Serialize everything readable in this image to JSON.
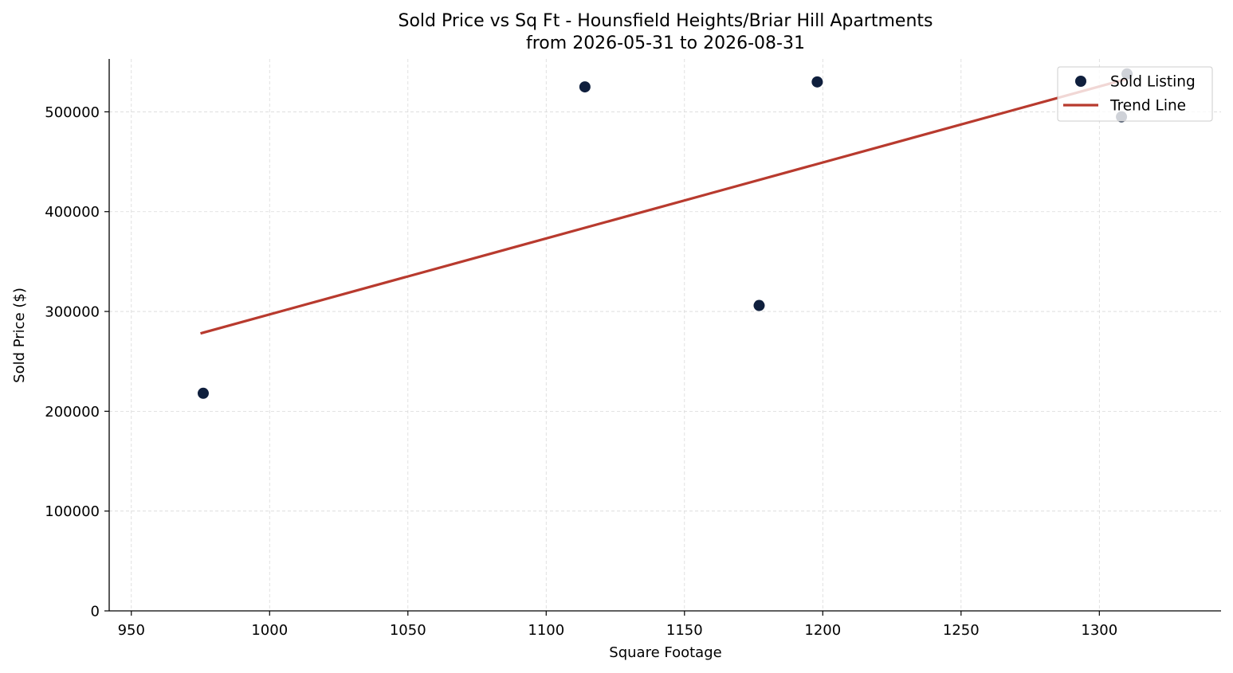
{
  "chart_data": {
    "type": "scatter",
    "title": "Sold Price vs Sq Ft - Hounsfield Heights/Briar Hill Apartments",
    "subtitle": "from 2026-05-31 to 2026-08-31",
    "xlabel": "Square Footage",
    "ylabel": "Sold Price ($)",
    "xlim": [
      942,
      1344
    ],
    "ylim": [
      0,
      553000
    ],
    "xticks": [
      950,
      1000,
      1050,
      1100,
      1150,
      1200,
      1250,
      1300
    ],
    "yticks": [
      0,
      100000,
      200000,
      300000,
      400000,
      500000
    ],
    "grid": true,
    "legend_position": "top-right",
    "series": [
      {
        "name": "Sold Listing",
        "kind": "scatter",
        "color": "#0f1f3d",
        "points": [
          {
            "x": 976,
            "y": 218000
          },
          {
            "x": 1114,
            "y": 525000
          },
          {
            "x": 1177,
            "y": 306000
          },
          {
            "x": 1198,
            "y": 530000
          },
          {
            "x": 1308,
            "y": 495000
          },
          {
            "x": 1310,
            "y": 538000
          }
        ]
      },
      {
        "name": "Trend Line",
        "kind": "line",
        "color": "#b83a2e",
        "points": [
          {
            "x": 975,
            "y": 278000
          },
          {
            "x": 1310,
            "y": 533000
          }
        ]
      }
    ]
  }
}
